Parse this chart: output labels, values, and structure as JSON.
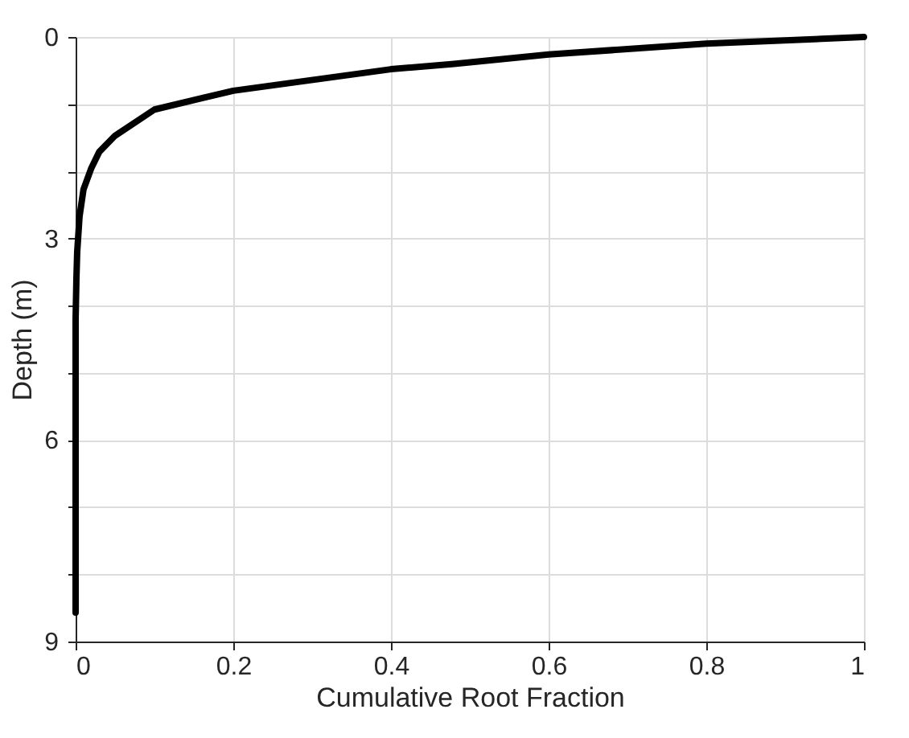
{
  "chart_data": {
    "type": "line",
    "xlabel": "Cumulative Root Fraction",
    "ylabel": "Depth (m)",
    "x": [
      1,
      0.8,
      0.6,
      0.48,
      0.4,
      0.2,
      0.1,
      0.05,
      0.03,
      0.02,
      0.01,
      0.005,
      0.002,
      0.001,
      0,
      0
    ],
    "series": [
      {
        "color": "#000000",
        "values": [
          0,
          0.1,
          0.26,
          0.4,
          0.48,
          0.8,
          1.08,
          1.47,
          1.71,
          1.95,
          2.27,
          2.67,
          3.2,
          3.6,
          4.2,
          8.57
        ]
      }
    ],
    "xlim": [
      0,
      1
    ],
    "xticks": [
      0,
      0.2,
      0.4,
      0.6,
      0.8,
      1
    ],
    "ylim": [
      9,
      0
    ],
    "yticks": [
      0,
      {
        "value": 1,
        "label": null
      },
      {
        "value": 2,
        "label": null
      },
      3,
      {
        "value": 4,
        "label": null
      },
      {
        "value": 5,
        "label": null
      },
      6,
      {
        "value": 7,
        "label": null
      },
      {
        "value": 8,
        "label": null
      },
      9
    ],
    "grid": true,
    "marker": "none",
    "line_style": "solid"
  }
}
